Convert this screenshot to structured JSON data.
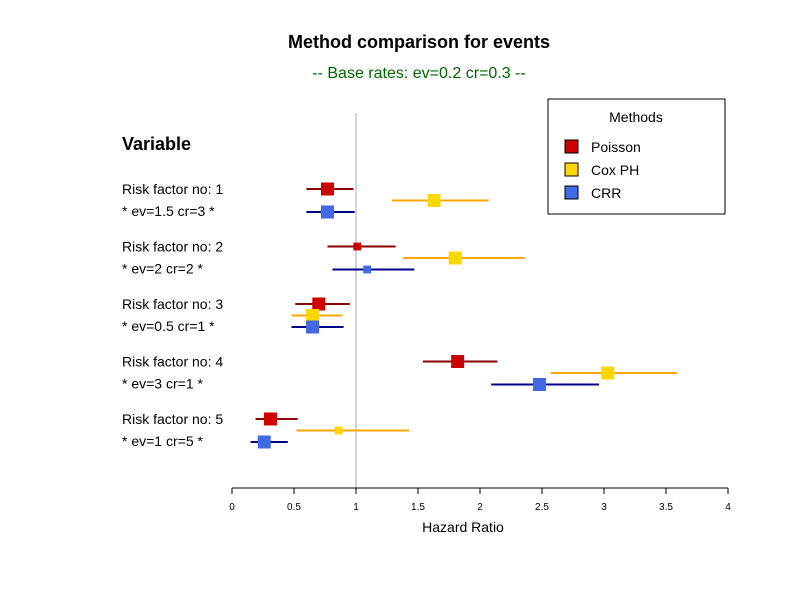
{
  "colors": {
    "subtitle": "#006400",
    "ref_line": "#d3d3d3",
    "axis": "#000000"
  },
  "chart_data": {
    "type": "forest",
    "title": "Method comparison for events",
    "subtitle": "-- Base rates: ev=0.2 cr=0.3 --",
    "variable_header": "Variable",
    "xlabel": "Hazard Ratio",
    "xlim": [
      0,
      4
    ],
    "xticks": [
      0,
      0.5,
      1,
      1.5,
      2,
      2.5,
      3,
      3.5,
      4
    ],
    "xtick_labels": [
      "0",
      "0.5",
      "1",
      "1.5",
      "2",
      "2.5",
      "3",
      "3.5",
      "4"
    ],
    "reference_line": 1,
    "legend": {
      "title": "Methods",
      "position": "top-right"
    },
    "series": [
      {
        "name": "Poisson",
        "fill": "#cc0000",
        "line": "#8b0000"
      },
      {
        "name": "Cox PH",
        "fill": "#ffd700",
        "line": "#ffa500"
      },
      {
        "name": "CRR",
        "fill": "#4169e1",
        "line": "#00008b"
      }
    ],
    "groups": [
      {
        "label": "Risk factor no: 1",
        "sublabel": " * ev=1.5 cr=3 *",
        "estimates": [
          {
            "series": "Poisson",
            "hr": 0.77,
            "lower": 0.6,
            "upper": 0.98,
            "weight": 1.0
          },
          {
            "series": "Cox PH",
            "hr": 1.63,
            "lower": 1.29,
            "upper": 2.07,
            "weight": 1.0
          },
          {
            "series": "CRR",
            "hr": 0.77,
            "lower": 0.6,
            "upper": 0.99,
            "weight": 1.0
          }
        ]
      },
      {
        "label": "Risk factor no: 2",
        "sublabel": " * ev=2 cr=2 *",
        "estimates": [
          {
            "series": "Poisson",
            "hr": 1.01,
            "lower": 0.77,
            "upper": 1.32,
            "weight": 0.6
          },
          {
            "series": "Cox PH",
            "hr": 1.8,
            "lower": 1.38,
            "upper": 2.36,
            "weight": 1.0
          },
          {
            "series": "CRR",
            "hr": 1.09,
            "lower": 0.81,
            "upper": 1.47,
            "weight": 0.6
          }
        ]
      },
      {
        "label": "Risk factor no: 3",
        "sublabel": " * ev=0.5 cr=1 *",
        "estimates": [
          {
            "series": "Poisson",
            "hr": 0.7,
            "lower": 0.51,
            "upper": 0.95,
            "weight": 1.0
          },
          {
            "series": "Cox PH",
            "hr": 0.65,
            "lower": 0.48,
            "upper": 0.89,
            "weight": 1.0
          },
          {
            "series": "CRR",
            "hr": 0.65,
            "lower": 0.48,
            "upper": 0.9,
            "weight": 1.0
          }
        ]
      },
      {
        "label": "Risk factor no: 4",
        "sublabel": " * ev=3 cr=1 *",
        "estimates": [
          {
            "series": "Poisson",
            "hr": 1.82,
            "lower": 1.54,
            "upper": 2.14,
            "weight": 1.0
          },
          {
            "series": "Cox PH",
            "hr": 3.03,
            "lower": 2.57,
            "upper": 3.59,
            "weight": 1.0
          },
          {
            "series": "CRR",
            "hr": 2.48,
            "lower": 2.09,
            "upper": 2.96,
            "weight": 1.0
          }
        ]
      },
      {
        "label": "Risk factor no: 5",
        "sublabel": " * ev=1 cr=5 *",
        "estimates": [
          {
            "series": "Poisson",
            "hr": 0.31,
            "lower": 0.19,
            "upper": 0.53,
            "weight": 1.0
          },
          {
            "series": "Cox PH",
            "hr": 0.86,
            "lower": 0.52,
            "upper": 1.43,
            "weight": 0.6
          },
          {
            "series": "CRR",
            "hr": 0.26,
            "lower": 0.15,
            "upper": 0.45,
            "weight": 1.0
          }
        ]
      }
    ]
  }
}
